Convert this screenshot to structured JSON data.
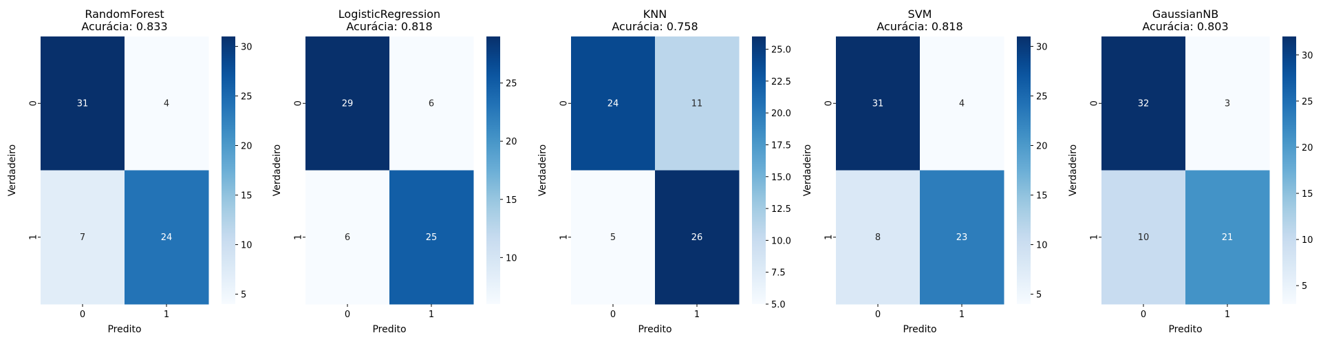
{
  "chart_data": [
    {
      "type": "heatmap",
      "title": "RandomForest",
      "subtitle": "Acurácia: 0.833",
      "xlabel": "Predito",
      "ylabel": "Verdadeiro",
      "x_categories": [
        "0",
        "1"
      ],
      "y_categories": [
        "0",
        "1"
      ],
      "matrix": [
        [
          31,
          4
        ],
        [
          7,
          24
        ]
      ],
      "colormap": "Blues",
      "colorbar_range": [
        4,
        31
      ],
      "colorbar_ticks": [
        "5",
        "10",
        "15",
        "20",
        "25",
        "30"
      ]
    },
    {
      "type": "heatmap",
      "title": "LogisticRegression",
      "subtitle": "Acurácia: 0.818",
      "xlabel": "Predito",
      "ylabel": "Verdadeiro",
      "x_categories": [
        "0",
        "1"
      ],
      "y_categories": [
        "0",
        "1"
      ],
      "matrix": [
        [
          29,
          6
        ],
        [
          6,
          25
        ]
      ],
      "colormap": "Blues",
      "colorbar_range": [
        6,
        29
      ],
      "colorbar_ticks": [
        "10",
        "15",
        "20",
        "25"
      ]
    },
    {
      "type": "heatmap",
      "title": "KNN",
      "subtitle": "Acurácia: 0.758",
      "xlabel": "Predito",
      "ylabel": "Verdadeiro",
      "x_categories": [
        "0",
        "1"
      ],
      "y_categories": [
        "0",
        "1"
      ],
      "matrix": [
        [
          24,
          11
        ],
        [
          5,
          26
        ]
      ],
      "colormap": "Blues",
      "colorbar_range": [
        5,
        26
      ],
      "colorbar_ticks": [
        "5.0",
        "7.5",
        "10.0",
        "12.5",
        "15.0",
        "17.5",
        "20.0",
        "22.5",
        "25.0"
      ]
    },
    {
      "type": "heatmap",
      "title": "SVM",
      "subtitle": "Acurácia: 0.818",
      "xlabel": "Predito",
      "ylabel": "Verdadeiro",
      "x_categories": [
        "0",
        "1"
      ],
      "y_categories": [
        "0",
        "1"
      ],
      "matrix": [
        [
          31,
          4
        ],
        [
          8,
          23
        ]
      ],
      "colormap": "Blues",
      "colorbar_range": [
        4,
        31
      ],
      "colorbar_ticks": [
        "5",
        "10",
        "15",
        "20",
        "25",
        "30"
      ]
    },
    {
      "type": "heatmap",
      "title": "GaussianNB",
      "subtitle": "Acurácia: 0.803",
      "xlabel": "Predito",
      "ylabel": "Verdadeiro",
      "x_categories": [
        "0",
        "1"
      ],
      "y_categories": [
        "0",
        "1"
      ],
      "matrix": [
        [
          32,
          3
        ],
        [
          10,
          21
        ]
      ],
      "colormap": "Blues",
      "colorbar_range": [
        3,
        32
      ],
      "colorbar_ticks": [
        "5",
        "10",
        "15",
        "20",
        "25",
        "30"
      ]
    }
  ]
}
